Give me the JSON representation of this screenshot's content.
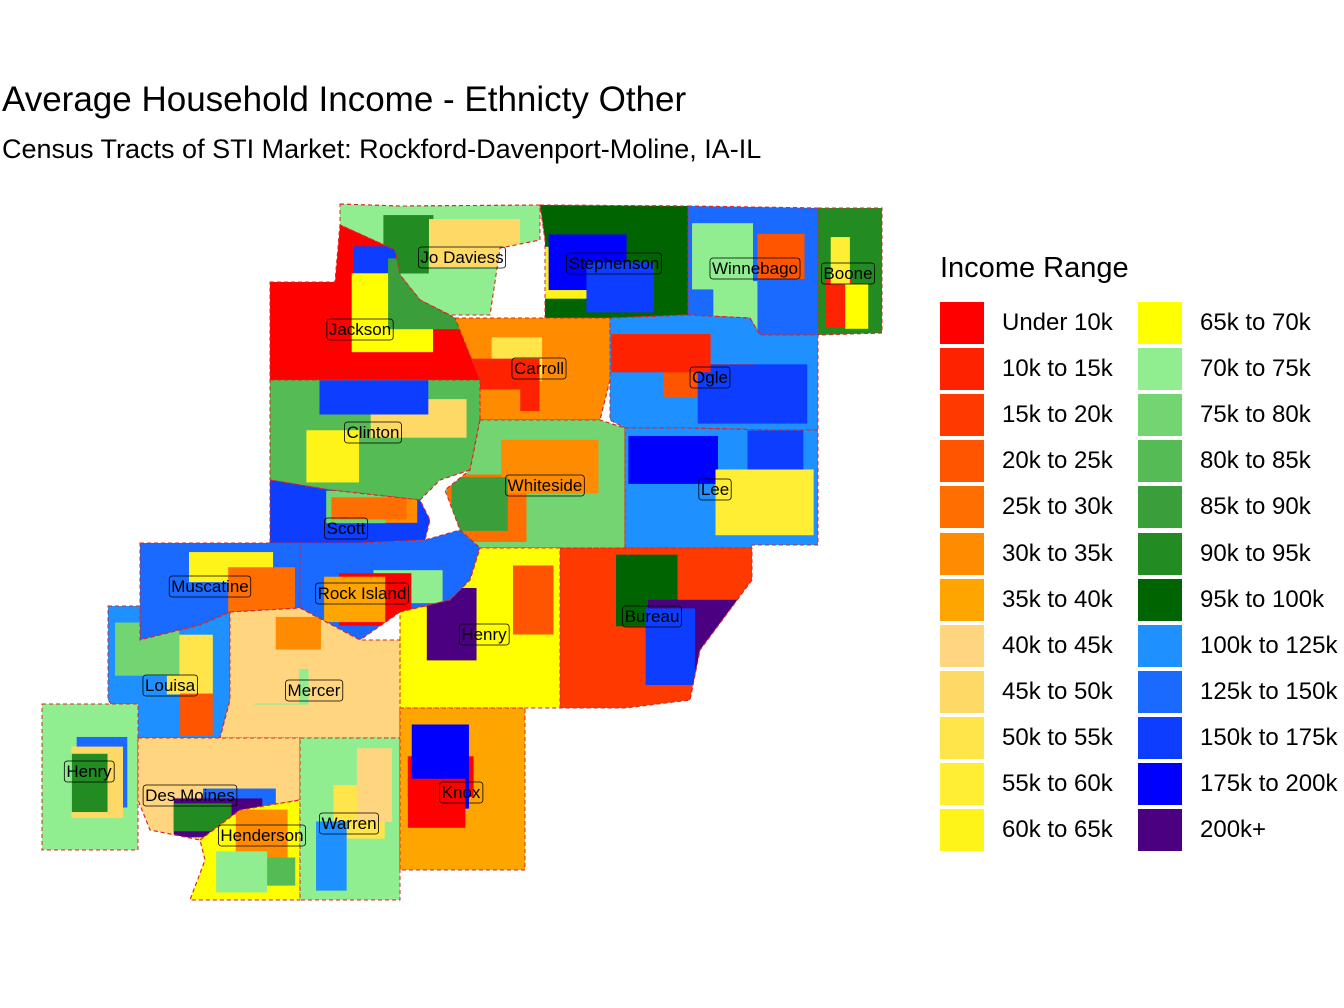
{
  "title": "Average Household Income - Ethnicty Other",
  "subtitle": "Census Tracts of STI Market: Rockford-Davenport-Moline, IA-IL",
  "legend": {
    "title": "Income Range",
    "items": [
      {
        "label": "Under 10k",
        "color": "#FF0000"
      },
      {
        "label": "10k to 15k",
        "color": "#FF2200"
      },
      {
        "label": "15k to 20k",
        "color": "#FF3A00"
      },
      {
        "label": "20k to 25k",
        "color": "#FF5500"
      },
      {
        "label": "25k to 30k",
        "color": "#FF6E00"
      },
      {
        "label": "30k to 35k",
        "color": "#FF8C00"
      },
      {
        "label": "35k to 40k",
        "color": "#FFA500"
      },
      {
        "label": "40k to 45k",
        "color": "#FFD580"
      },
      {
        "label": "45k to 50k",
        "color": "#FFD966"
      },
      {
        "label": "50k to 55k",
        "color": "#FFE44A"
      },
      {
        "label": "55k to 60k",
        "color": "#FFEE33"
      },
      {
        "label": "60k to 65k",
        "color": "#FFF41A"
      },
      {
        "label": "65k to 70k",
        "color": "#FFFF00"
      },
      {
        "label": "70k to 75k",
        "color": "#90EE90"
      },
      {
        "label": "75k to 80k",
        "color": "#72D572"
      },
      {
        "label": "80k to 85k",
        "color": "#55BB55"
      },
      {
        "label": "85k to 90k",
        "color": "#3A9E3A"
      },
      {
        "label": "90k to 95k",
        "color": "#228B22"
      },
      {
        "label": "95k to 100k",
        "color": "#006400"
      },
      {
        "label": "100k to 125k",
        "color": "#1E90FF"
      },
      {
        "label": "125k to 150k",
        "color": "#1A6AFF"
      },
      {
        "label": "150k to 175k",
        "color": "#0D3DFF"
      },
      {
        "label": "175k to 200k",
        "color": "#0000FF"
      },
      {
        "label": "200k+",
        "color": "#4B0082"
      }
    ]
  },
  "counties": [
    {
      "name": "Jo Daviess",
      "income_range": "70k to 75k"
    },
    {
      "name": "Stephenson",
      "income_range": "95k to 100k"
    },
    {
      "name": "Winnebago",
      "income_range": "125k to 150k"
    },
    {
      "name": "Boone",
      "income_range": "90k to 95k"
    },
    {
      "name": "Jackson",
      "income_range": "Under 10k"
    },
    {
      "name": "Carroll",
      "income_range": "30k to 35k"
    },
    {
      "name": "Ogle",
      "income_range": "100k to 125k"
    },
    {
      "name": "Clinton",
      "income_range": "80k to 85k"
    },
    {
      "name": "Whiteside",
      "income_range": "75k to 80k"
    },
    {
      "name": "Lee",
      "income_range": "100k to 125k"
    },
    {
      "name": "Scott",
      "income_range": "150k to 175k"
    },
    {
      "name": "Muscatine",
      "income_range": "125k to 150k"
    },
    {
      "name": "Rock Island",
      "income_range": "125k to 150k"
    },
    {
      "name": "Bureau",
      "income_range": "15k to 20k"
    },
    {
      "name": "Henry",
      "income_range": "65k to 70k"
    },
    {
      "name": "Louisa",
      "income_range": "100k to 125k"
    },
    {
      "name": "Mercer",
      "income_range": "40k to 45k"
    },
    {
      "name": "Henry",
      "income_range": "70k to 75k"
    },
    {
      "name": "Des Moines",
      "income_range": "40k to 45k"
    },
    {
      "name": "Henderson",
      "income_range": "65k to 70k"
    },
    {
      "name": "Warren",
      "income_range": "70k to 75k"
    },
    {
      "name": "Knox",
      "income_range": "35k to 40k"
    }
  ]
}
